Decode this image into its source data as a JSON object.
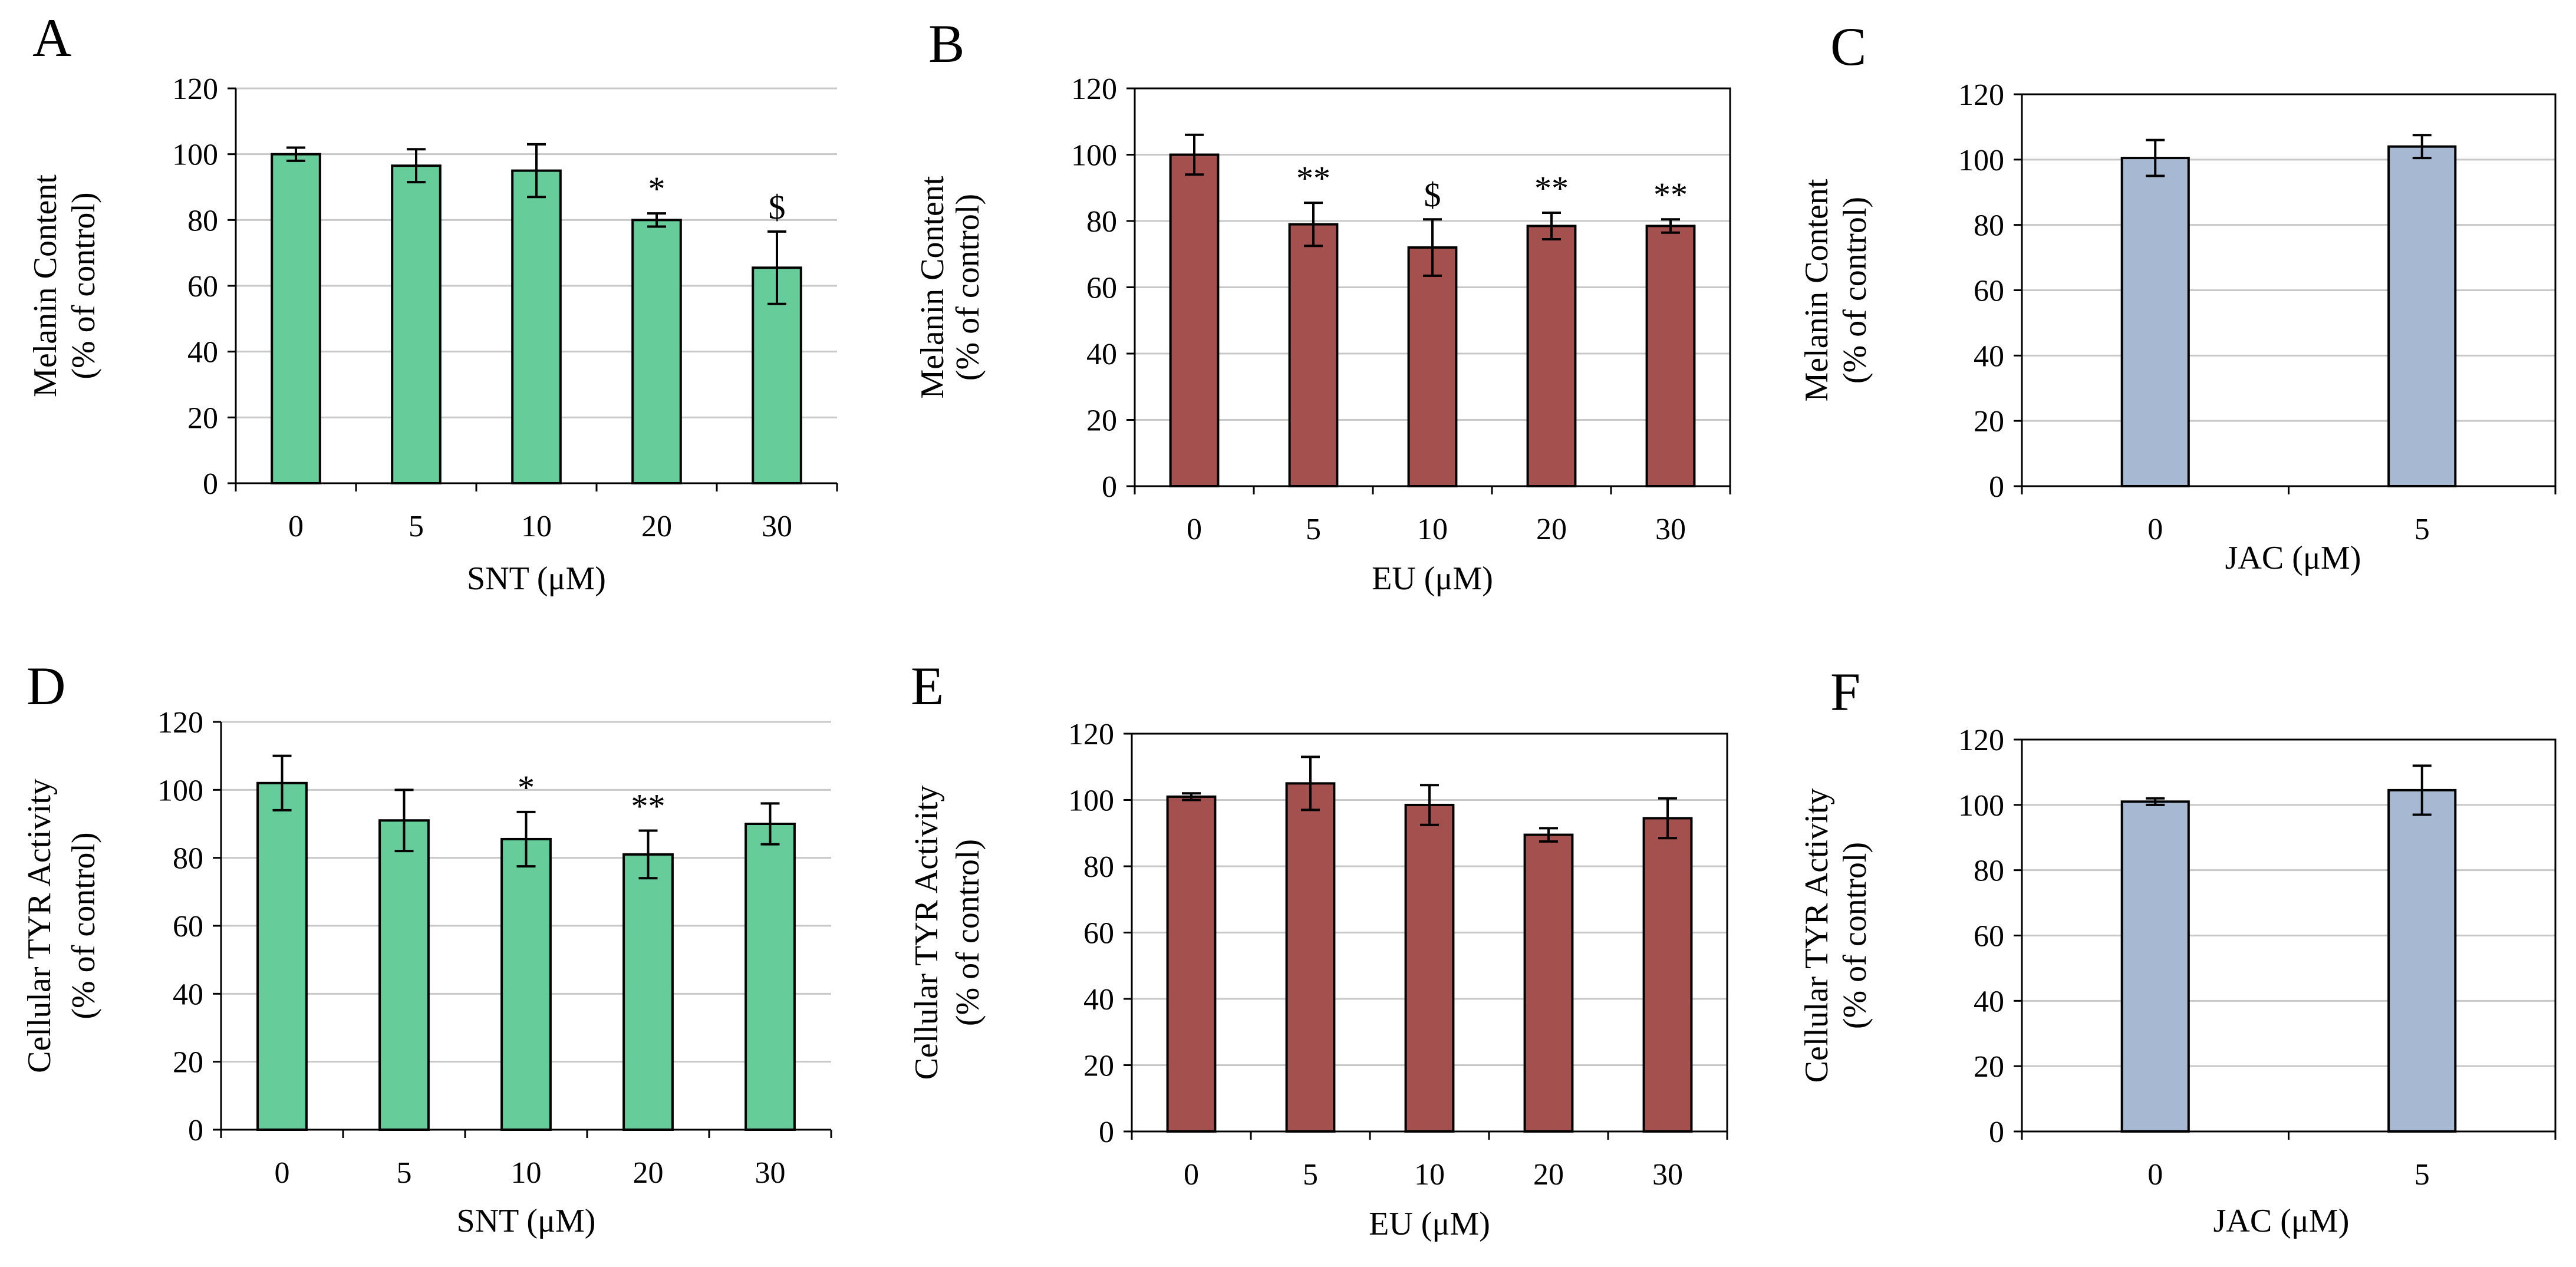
{
  "chart_data": [
    {
      "panel": "A",
      "type": "bar",
      "categories": [
        "0",
        "5",
        "10",
        "20",
        "30"
      ],
      "values": [
        100,
        96.5,
        95,
        80,
        65.5
      ],
      "errors": [
        2,
        5,
        8,
        2,
        11
      ],
      "annotations": [
        "",
        "",
        "",
        "*",
        "$"
      ],
      "xlabel": "SNT (μM)",
      "ylabel": [
        "Melanin Content",
        "(% of control)"
      ],
      "ylim": [
        0,
        120
      ],
      "yticks": [
        0,
        20,
        40,
        60,
        80,
        100,
        120
      ],
      "grid": true,
      "frame": false,
      "color": "#66cc99"
    },
    {
      "panel": "B",
      "type": "bar",
      "categories": [
        "0",
        "5",
        "10",
        "20",
        "30"
      ],
      "values": [
        100,
        79,
        72,
        78.5,
        78.5
      ],
      "errors": [
        6,
        6.5,
        8.5,
        4,
        2
      ],
      "annotations": [
        "",
        "**",
        "$",
        "**",
        "**"
      ],
      "xlabel": "EU (μM)",
      "ylabel": [
        "Melanin Content",
        "(% of control)"
      ],
      "ylim": [
        0,
        120
      ],
      "yticks": [
        0,
        20,
        40,
        60,
        80,
        100,
        120
      ],
      "grid": true,
      "frame": true,
      "color": "#a4504e"
    },
    {
      "panel": "C",
      "type": "bar",
      "categories": [
        "0",
        "5"
      ],
      "values": [
        100.5,
        104
      ],
      "errors": [
        5.5,
        3.5
      ],
      "annotations": [
        "",
        ""
      ],
      "xlabel": "JAC (μM)",
      "ylabel": [
        "Melanin Content",
        "(% of control)"
      ],
      "ylim": [
        0,
        120
      ],
      "yticks": [
        0,
        20,
        40,
        60,
        80,
        100,
        120
      ],
      "grid": true,
      "frame": true,
      "color": "#a6b8d2"
    },
    {
      "panel": "D",
      "type": "bar",
      "categories": [
        "0",
        "5",
        "10",
        "20",
        "30"
      ],
      "values": [
        102,
        91,
        85.5,
        81,
        90
      ],
      "errors": [
        8,
        9,
        8,
        7,
        6
      ],
      "annotations": [
        "",
        "",
        "*",
        "**",
        ""
      ],
      "xlabel": "SNT (μM)",
      "ylabel": [
        "Cellular TYR Activity",
        "(% of control)"
      ],
      "ylim": [
        0,
        120
      ],
      "yticks": [
        0,
        20,
        40,
        60,
        80,
        100,
        120
      ],
      "grid": true,
      "frame": false,
      "color": "#66cc99"
    },
    {
      "panel": "E",
      "type": "bar",
      "categories": [
        "0",
        "5",
        "10",
        "20",
        "30"
      ],
      "values": [
        101,
        105,
        98.5,
        89.5,
        94.5
      ],
      "errors": [
        1,
        8,
        6,
        2,
        6
      ],
      "annotations": [
        "",
        "",
        "",
        "",
        ""
      ],
      "xlabel": "EU (μM)",
      "ylabel": [
        "Cellular TYR Activity",
        "(% of control)"
      ],
      "ylim": [
        0,
        120
      ],
      "yticks": [
        0,
        20,
        40,
        60,
        80,
        100,
        120
      ],
      "grid": true,
      "frame": true,
      "color": "#a4504e"
    },
    {
      "panel": "F",
      "type": "bar",
      "categories": [
        "0",
        "5"
      ],
      "values": [
        101,
        104.5
      ],
      "errors": [
        1,
        7.5
      ],
      "annotations": [
        "",
        ""
      ],
      "xlabel": "JAC (μM)",
      "ylabel": [
        "Cellular TYR Activity",
        "(% of control)"
      ],
      "ylim": [
        0,
        120
      ],
      "yticks": [
        0,
        20,
        40,
        60,
        80,
        100,
        120
      ],
      "grid": true,
      "frame": true,
      "color": "#a6b8d2"
    }
  ]
}
